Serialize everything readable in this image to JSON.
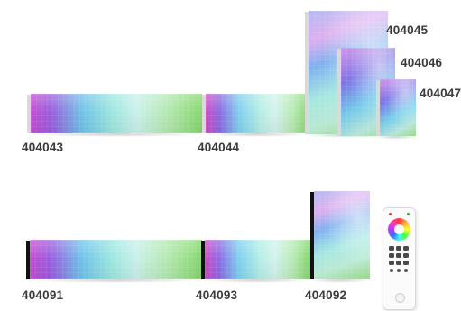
{
  "products": {
    "p404043": "404043",
    "p404044": "404044",
    "p404045": "404045",
    "p404046": "404046",
    "p404047": "404047",
    "p404091": "404091",
    "p404093": "404093",
    "p404092": "404092"
  },
  "icons": {
    "remote": "rgb-remote-control-icon"
  },
  "colors": {
    "label": "#3a3a3a",
    "panel_edge_light": "#d9d9d9",
    "panel_edge_dark": "#111111"
  }
}
